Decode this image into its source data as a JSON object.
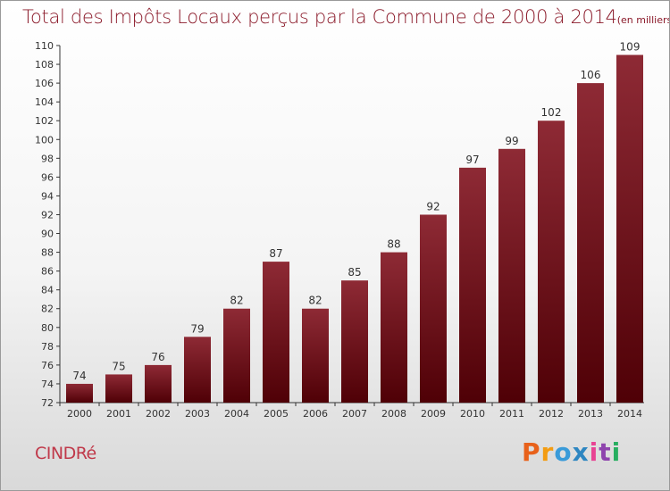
{
  "chart_data": {
    "type": "bar",
    "title": "Total des Impôts Locaux perçus par la Commune de 2000 à 2014",
    "unit_label": "(en milliers d'€)",
    "categories": [
      "2000",
      "2001",
      "2002",
      "2003",
      "2004",
      "2005",
      "2006",
      "2007",
      "2008",
      "2009",
      "2010",
      "2011",
      "2012",
      "2013",
      "2014"
    ],
    "values": [
      74,
      75,
      76,
      79,
      82,
      87,
      82,
      85,
      88,
      92,
      97,
      99,
      102,
      106,
      109
    ],
    "ylim": [
      72,
      110
    ],
    "yticks": [
      72,
      74,
      76,
      78,
      80,
      82,
      84,
      86,
      88,
      90,
      92,
      94,
      96,
      98,
      100,
      102,
      104,
      106,
      108,
      110
    ],
    "xlabel": "",
    "ylabel": "",
    "grid": false,
    "bar_color_top": "#8e2a35",
    "bar_color_bottom": "#4f0006"
  },
  "footer": {
    "commune_name": "CINDRé",
    "brand_letters": [
      "P",
      "r",
      "o",
      "x",
      "i",
      "t",
      "i"
    ],
    "brand_colors": [
      "#e8611a",
      "#f39c12",
      "#3a9bd9",
      "#2e86c1",
      "#e84393",
      "#8e44ad",
      "#27ae60"
    ]
  }
}
